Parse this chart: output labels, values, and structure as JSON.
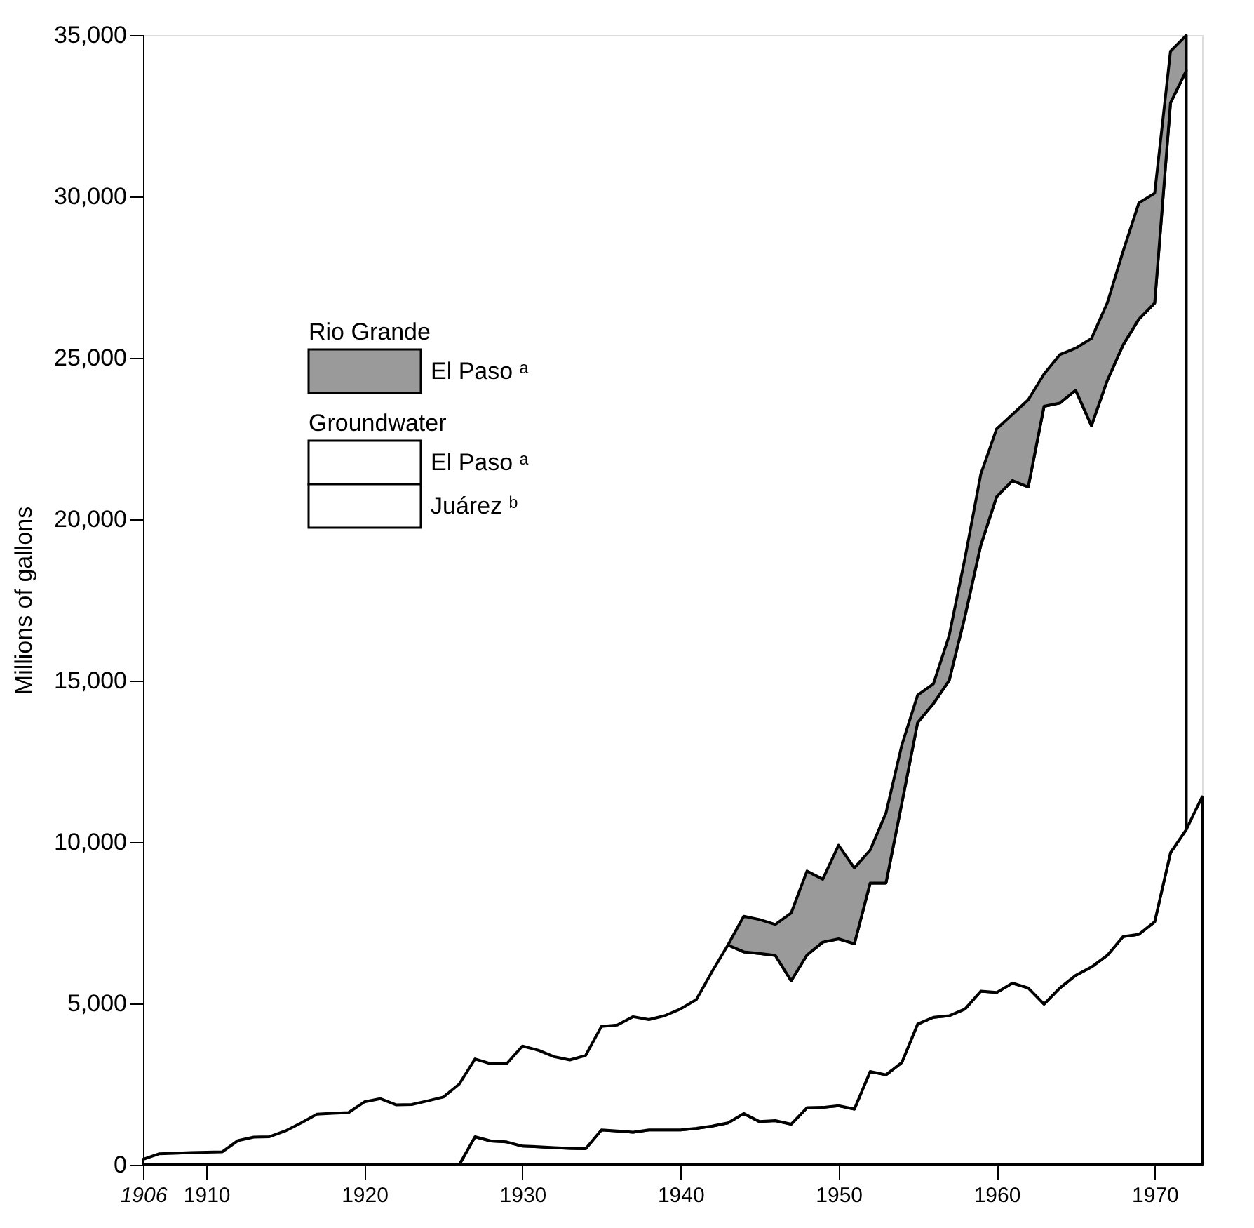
{
  "chart_data": {
    "type": "area",
    "stacked": true,
    "ylabel": "Millions of gallons",
    "x": [
      1906,
      1907,
      1908,
      1909,
      1910,
      1911,
      1912,
      1913,
      1914,
      1915,
      1916,
      1917,
      1918,
      1919,
      1920,
      1921,
      1922,
      1923,
      1924,
      1925,
      1926,
      1927,
      1928,
      1929,
      1930,
      1931,
      1932,
      1933,
      1934,
      1935,
      1936,
      1937,
      1938,
      1939,
      1940,
      1941,
      1942,
      1943,
      1944,
      1945,
      1946,
      1947,
      1948,
      1949,
      1950,
      1951,
      1952,
      1953,
      1954,
      1955,
      1956,
      1957,
      1958,
      1959,
      1960,
      1961,
      1962,
      1963,
      1964,
      1965,
      1966,
      1967,
      1968,
      1969,
      1970,
      1971,
      1972,
      1973
    ],
    "series": [
      {
        "name": "Juárez ᵇ",
        "color": "#ffffff",
        "values": [
          null,
          null,
          null,
          null,
          null,
          null,
          null,
          null,
          null,
          null,
          null,
          null,
          null,
          null,
          null,
          null,
          null,
          null,
          null,
          null,
          0,
          870,
          740,
          710,
          580,
          560,
          530,
          510,
          500,
          1080,
          1050,
          1010,
          1080,
          1080,
          1080,
          1130,
          1200,
          1300,
          1590,
          1340,
          1370,
          1260,
          1770,
          1780,
          1830,
          1730,
          2890,
          2790,
          3170,
          4360,
          4570,
          4620,
          4830,
          5380,
          5340,
          5630,
          5480,
          4980,
          5480,
          5870,
          6130,
          6490,
          7070,
          7140,
          7530,
          9670,
          10390,
          11400
        ]
      },
      {
        "name": "El Paso ᵃ",
        "color": "#ffffff",
        "values": [
          170,
          340,
          360,
          380,
          390,
          400,
          750,
          860,
          870,
          1050,
          1300,
          1570,
          1600,
          1620,
          1950,
          2050,
          1860,
          1870,
          1980,
          2100,
          2500,
          2410,
          2390,
          2420,
          3100,
          2990,
          2820,
          2740,
          2890,
          3210,
          3280,
          3580,
          3420,
          3540,
          3750,
          3990,
          4790,
          5510,
          5010,
          5210,
          5120,
          4440,
          4730,
          5120,
          5170,
          5120,
          5840,
          5940,
          8030,
          9340,
          9720,
          10390,
          12170,
          13820,
          15360,
          15570,
          15520,
          18520,
          18120,
          18130,
          16770,
          17810,
          18330,
          19060,
          19170,
          23230,
          23510,
          null
        ]
      },
      {
        "name": "El Paso ᵃ",
        "color": "#9a9a9a",
        "values": [
          null,
          null,
          null,
          null,
          null,
          null,
          null,
          null,
          null,
          null,
          null,
          null,
          null,
          null,
          null,
          null,
          null,
          null,
          null,
          null,
          null,
          null,
          null,
          null,
          null,
          null,
          null,
          null,
          null,
          null,
          null,
          null,
          null,
          null,
          null,
          null,
          null,
          0,
          1100,
          1050,
          960,
          2100,
          2600,
          1950,
          2900,
          2350,
          1020,
          2170,
          1800,
          850,
          610,
          1390,
          1800,
          2200,
          2100,
          2050,
          2700,
          1000,
          1500,
          1300,
          2700,
          2400,
          2900,
          3600,
          3400,
          1600,
          1090,
          null
        ]
      }
    ],
    "annotations": [
      "Rio Grande",
      "Groundwater"
    ],
    "legend": "top left",
    "xlim": [
      1906,
      1973
    ],
    "xticks": [
      1906,
      1910,
      1920,
      1930,
      1940,
      1950,
      1960,
      1970
    ],
    "ylim": [
      0,
      35000
    ],
    "yticks": [
      0,
      {
        "value": 5000,
        "label": "5,000"
      },
      {
        "value": 10000,
        "label": "10,000"
      },
      {
        "value": 15000,
        "label": "15,000"
      },
      {
        "value": 20000,
        "label": "20,000"
      },
      {
        "value": 25000,
        "label": "25,000"
      },
      {
        "value": 30000,
        "label": "30,000"
      },
      {
        "value": 35000,
        "label": "35,000"
      }
    ],
    "grid": false
  }
}
